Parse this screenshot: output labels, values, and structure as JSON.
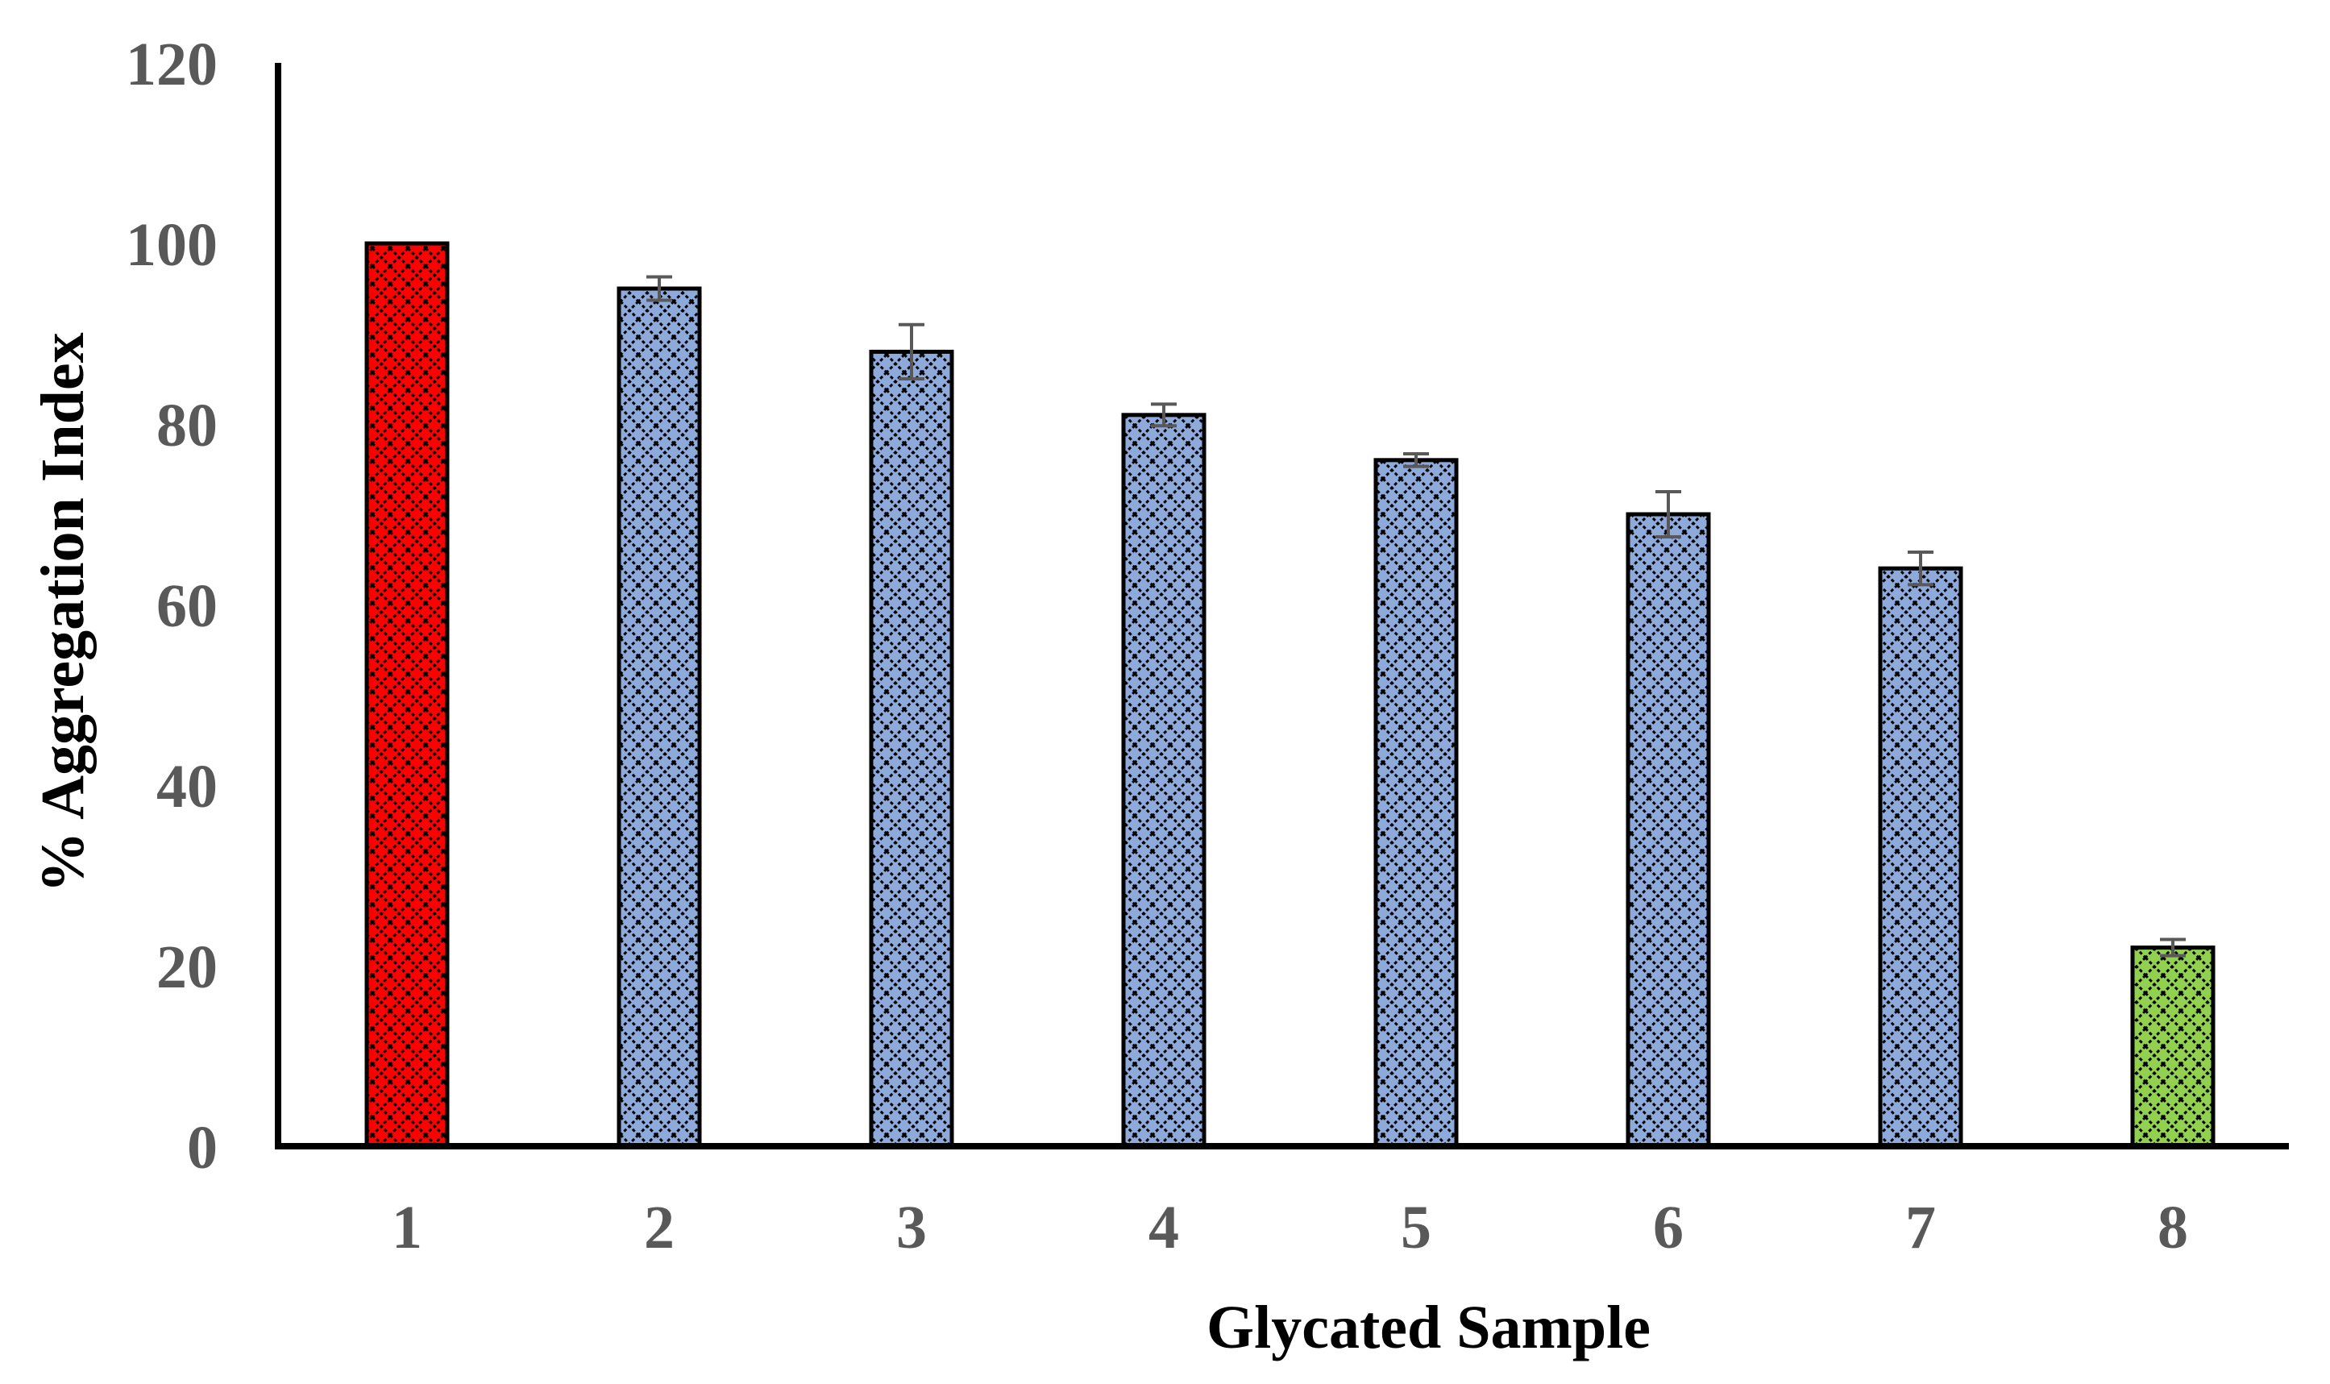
{
  "chart_data": {
    "type": "bar",
    "title": "",
    "xlabel": "Glycated Sample",
    "ylabel": "% Aggregation Index",
    "categories": [
      "1",
      "2",
      "3",
      "4",
      "5",
      "6",
      "7",
      "8"
    ],
    "values": [
      100,
      95,
      88,
      81,
      76,
      70,
      64,
      22
    ],
    "error": [
      0,
      1.3,
      3,
      1.2,
      0.7,
      2.5,
      1.8,
      0.9
    ],
    "bar_colors": [
      "#ff0000",
      "#8eaadb",
      "#8eaadb",
      "#8eaadb",
      "#8eaadb",
      "#8eaadb",
      "#8eaadb",
      "#92d050"
    ],
    "pattern": "crosshatch",
    "ylim": [
      0,
      120
    ],
    "yticks": [
      0,
      20,
      40,
      60,
      80,
      100,
      120
    ],
    "grid": false,
    "legend": "none"
  }
}
